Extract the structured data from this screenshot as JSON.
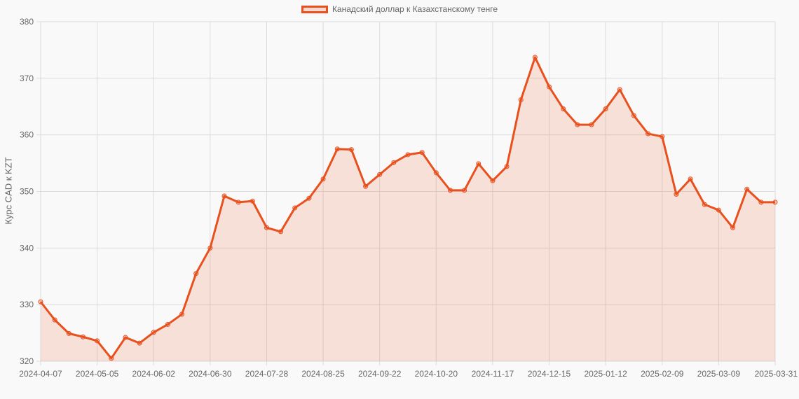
{
  "chart_data": {
    "type": "line",
    "title": "",
    "legend": [
      {
        "label": "Канадский доллар к Казахстанскому тенге",
        "color": "#e8501e"
      }
    ],
    "legend_position": "top",
    "xlabel": "",
    "ylabel": "Курс CAD к KZT",
    "ylim": [
      320,
      380
    ],
    "yticks": [
      320,
      330,
      340,
      350,
      360,
      370,
      380
    ],
    "xtick_labels": [
      "2024-04-07",
      "2024-05-05",
      "2024-06-02",
      "2024-06-30",
      "2024-07-28",
      "2024-08-25",
      "2024-09-22",
      "2024-10-20",
      "2024-11-17",
      "2024-12-15",
      "2025-01-12",
      "2025-02-09",
      "2025-03-09",
      "2025-03-31"
    ],
    "grid": true,
    "fill": true,
    "series": [
      {
        "name": "Канадский доллар к Казахстанскому тенге",
        "color": "#e8501e",
        "fill_color": "rgba(232,80,30,0.15)",
        "values": [
          330.5,
          327.3,
          324.9,
          324.3,
          323.6,
          320.5,
          324.2,
          323.2,
          325.1,
          326.5,
          328.3,
          335.5,
          340.0,
          349.2,
          348.1,
          348.3,
          343.6,
          342.9,
          347.1,
          348.8,
          352.2,
          357.5,
          357.4,
          350.9,
          353.0,
          355.1,
          356.5,
          356.9,
          353.3,
          350.2,
          350.2,
          354.9,
          351.9,
          354.4,
          366.2,
          373.7,
          368.5,
          364.6,
          361.8,
          361.8,
          364.6,
          368.0,
          363.4,
          360.2,
          359.7,
          349.5,
          352.2,
          347.7,
          346.7,
          343.6,
          350.4,
          348.1,
          348.1
        ]
      }
    ]
  }
}
